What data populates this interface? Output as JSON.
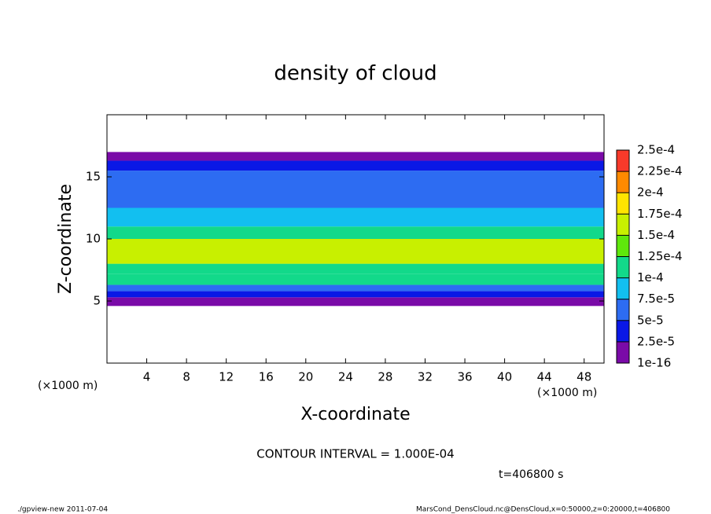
{
  "chart_data": {
    "type": "contour",
    "title": "density of cloud",
    "xlabel": "X-coordinate",
    "ylabel": "Z-coordinate",
    "x_unit": "(×1000 m)",
    "y_unit": "(×1000 m)",
    "contour_interval": "CONTOUR INTERVAL = 1.000E-04",
    "time": "t=406800 s",
    "footer_left": "./gpview-new   2011-07-04",
    "footer_right": "MarsCond_DensCloud.nc@DensCloud,x=0:50000,z=0:20000,t=406800",
    "xlim": [
      0,
      50
    ],
    "ylim": [
      0,
      20
    ],
    "xticks": [
      4,
      8,
      12,
      16,
      20,
      24,
      28,
      32,
      36,
      40,
      44,
      48
    ],
    "yticks": [
      5,
      10,
      15
    ],
    "profile": {
      "z_edges": [
        4.6,
        5.3,
        5.8,
        6.3,
        7.2,
        8.0,
        10.0,
        11.0,
        12.5,
        15.5,
        16.3,
        17.0
      ],
      "values": [
        1e-05,
        3.5e-05,
        7e-05,
        0.0001,
        0.00012,
        0.00016,
        0.00011,
        8e-05,
        6e-05,
        3e-05,
        1e-05
      ]
    },
    "colorbar": {
      "ticks": [
        {
          "value": 1e-16,
          "label": "1e-16"
        },
        {
          "value": 2.5e-05,
          "label": "2.5e-5"
        },
        {
          "value": 5e-05,
          "label": "5e-5"
        },
        {
          "value": 7.5e-05,
          "label": "7.5e-5"
        },
        {
          "value": 0.0001,
          "label": "1e-4"
        },
        {
          "value": 0.000125,
          "label": "1.25e-4"
        },
        {
          "value": 0.00015,
          "label": "1.5e-4"
        },
        {
          "value": 0.000175,
          "label": "1.75e-4"
        },
        {
          "value": 0.0002,
          "label": "2e-4"
        },
        {
          "value": 0.000225,
          "label": "2.25e-4"
        },
        {
          "value": 0.00025,
          "label": "2.5e-4"
        }
      ],
      "colors": [
        "#7a0aa8",
        "#0a18e6",
        "#2d6cf2",
        "#12bff0",
        "#12d98a",
        "#5fe80c",
        "#c8f000",
        "#ffe400",
        "#ff8a00",
        "#f83a2a"
      ]
    }
  }
}
